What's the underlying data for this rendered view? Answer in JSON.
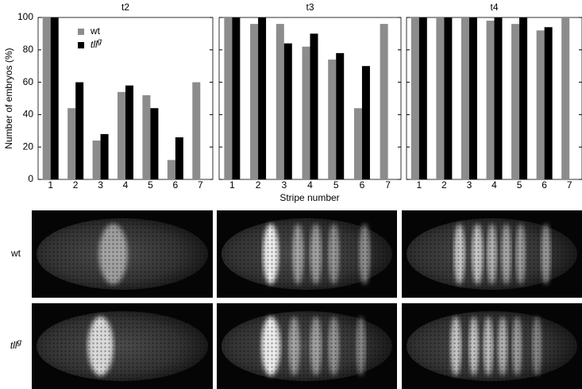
{
  "chart_data": [
    {
      "type": "bar",
      "title": "t2",
      "ylabel": "Number of embryos (%)",
      "xlabel": "Stripe number",
      "categories": [
        "1",
        "2",
        "3",
        "4",
        "5",
        "6",
        "7"
      ],
      "series": [
        {
          "name": "wt",
          "color": "#8c8c8c",
          "values": [
            100,
            44,
            24,
            54,
            52,
            12,
            60
          ]
        },
        {
          "name": "tll",
          "name_superscript": "g",
          "color": "#000000",
          "values": [
            100,
            60,
            28,
            58,
            44,
            26,
            null
          ]
        }
      ],
      "ylim": [
        0,
        100
      ],
      "yticks": [
        0,
        20,
        40,
        60,
        80,
        100
      ],
      "show_ytick_labels": true,
      "legend": "upper center"
    },
    {
      "type": "bar",
      "title": "t3",
      "categories": [
        "1",
        "2",
        "3",
        "4",
        "5",
        "6",
        "7"
      ],
      "series": [
        {
          "color": "#8c8c8c",
          "values": [
            100,
            96,
            96,
            82,
            74,
            44,
            96
          ]
        },
        {
          "color": "#000000",
          "values": [
            100,
            100,
            84,
            90,
            78,
            70,
            null
          ]
        }
      ],
      "ylim": [
        0,
        100
      ],
      "yticks": [
        0,
        20,
        40,
        60,
        80,
        100
      ],
      "show_ytick_labels": false
    },
    {
      "type": "bar",
      "title": "t4",
      "categories": [
        "1",
        "2",
        "3",
        "4",
        "5",
        "6",
        "7"
      ],
      "series": [
        {
          "color": "#8c8c8c",
          "values": [
            100,
            100,
            100,
            98,
            96,
            92,
            100
          ]
        },
        {
          "color": "#000000",
          "values": [
            100,
            100,
            100,
            100,
            100,
            94,
            null
          ]
        }
      ],
      "ylim": [
        0,
        100
      ],
      "yticks": [
        0,
        20,
        40,
        60,
        80,
        100
      ],
      "show_ytick_labels": false
    }
  ],
  "images": {
    "rows": [
      {
        "label": "wt"
      },
      {
        "label": "tll",
        "label_superscript": "g"
      }
    ]
  }
}
